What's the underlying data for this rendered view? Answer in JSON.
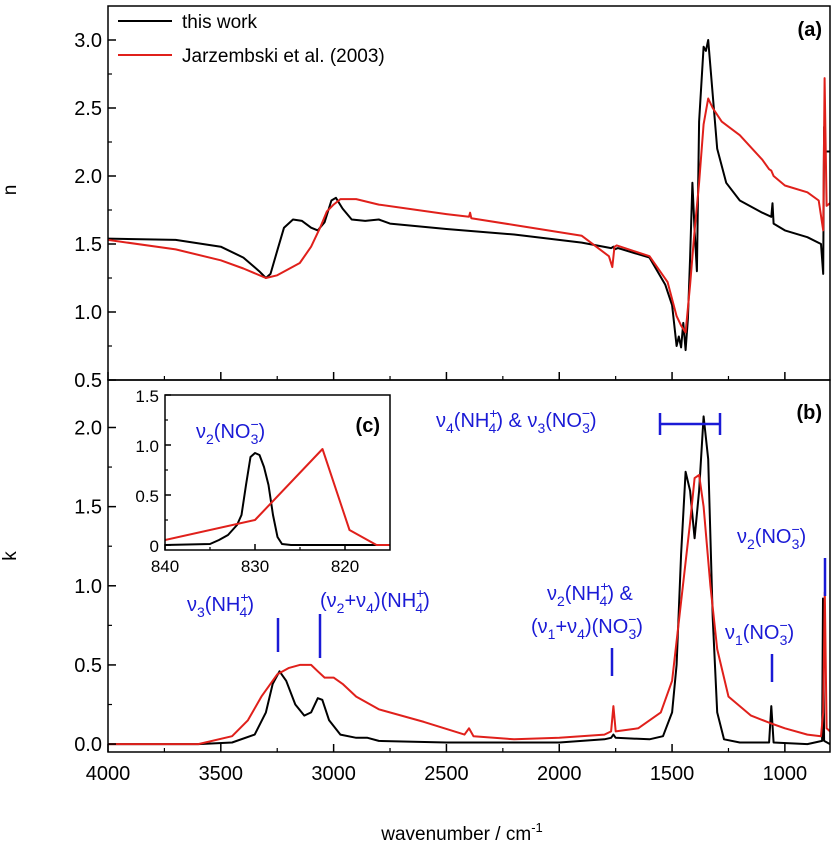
{
  "colors": {
    "this_work": "#000000",
    "jarzembski": "#e0201b",
    "annotation": "#1a1ad6"
  },
  "legend": {
    "series_a": "this work",
    "series_b": "Jarzembski et al. (2003)"
  },
  "axes": {
    "xlabel": "wavenumber / cm",
    "xlabel_sup": "-1",
    "ylabel_top": "n",
    "ylabel_bottom": "k"
  },
  "panels": {
    "a": "(a)",
    "b": "(b)",
    "c": "(c)"
  },
  "annotations": {
    "v3_nh4": {
      "pre": "ν",
      "sub1": "3",
      "mid": "(NH",
      "sup": "+",
      "sub2": "4",
      "post": ")"
    },
    "v2v4_nh4": {
      "pre": "(ν",
      "sub1": "2",
      "mid1": "+ν",
      "sub2": "4",
      "mid2": ")(NH",
      "sup": "+",
      "sub3": "4",
      "post": ")"
    },
    "v2_nh4_line1": {
      "pre": "ν",
      "sub1": "2",
      "mid": "(NH",
      "sup": "+",
      "sub2": "4",
      "post": ") &"
    },
    "v1v4_no3": {
      "pre": "(ν",
      "sub1": "1",
      "mid1": "+ν",
      "sub2": "4",
      "mid2": ")(NO",
      "sup": "−",
      "sub3": "3",
      "post": ")"
    },
    "v4v3": {
      "pre": "ν",
      "sub1": "4",
      "mid1": "(NH",
      "sup1": "+",
      "sub2": "4",
      "mid2": ") & ν",
      "sub3": "3",
      "mid3": "(NO",
      "sup2": "−",
      "sub4": "3",
      "post": ")"
    },
    "v2_no3": {
      "pre": "ν",
      "sub1": "2",
      "mid": "(NO",
      "sup": "−",
      "sub2": "3",
      "post": ")"
    },
    "v1_no3": {
      "pre": "ν",
      "sub1": "1",
      "mid": "(NO",
      "sup": "−",
      "sub2": "3",
      "post": ")"
    },
    "inset_v2_no3": {
      "pre": "ν",
      "sub1": "2",
      "mid": "(NO",
      "sup": "−",
      "sub2": "3",
      "post": ")"
    }
  },
  "chart_data": [
    {
      "panel": "(a)",
      "type": "line",
      "xlabel": "",
      "ylabel": "n",
      "xlim": [
        4000,
        800
      ],
      "ylim": [
        0.5,
        3.25
      ],
      "x_ticks": [
        4000,
        3500,
        3000,
        2500,
        2000,
        1500,
        1000
      ],
      "y_ticks": [
        0.5,
        1.0,
        1.5,
        2.0,
        2.5,
        3.0
      ],
      "y_tick_labels": [
        "0.5",
        "1.0",
        "1.5",
        "2.0",
        "2.5",
        "3.0"
      ],
      "legend_position": "top-left",
      "series": [
        {
          "name": "this work",
          "color": "#000000",
          "points": [
            [
              4000,
              1.54
            ],
            [
              3700,
              1.53
            ],
            [
              3500,
              1.48
            ],
            [
              3400,
              1.4
            ],
            [
              3330,
              1.3
            ],
            [
              3300,
              1.25
            ],
            [
              3280,
              1.28
            ],
            [
              3250,
              1.45
            ],
            [
              3220,
              1.62
            ],
            [
              3180,
              1.68
            ],
            [
              3140,
              1.67
            ],
            [
              3100,
              1.62
            ],
            [
              3070,
              1.6
            ],
            [
              3040,
              1.66
            ],
            [
              3010,
              1.82
            ],
            [
              2990,
              1.84
            ],
            [
              2960,
              1.76
            ],
            [
              2920,
              1.68
            ],
            [
              2860,
              1.67
            ],
            [
              2800,
              1.68
            ],
            [
              2750,
              1.65
            ],
            [
              2500,
              1.61
            ],
            [
              2200,
              1.57
            ],
            [
              1900,
              1.51
            ],
            [
              1770,
              1.47
            ],
            [
              1760,
              1.48
            ],
            [
              1755,
              1.46
            ],
            [
              1740,
              1.47
            ],
            [
              1600,
              1.4
            ],
            [
              1530,
              1.2
            ],
            [
              1500,
              1.05
            ],
            [
              1480,
              0.75
            ],
            [
              1470,
              0.82
            ],
            [
              1460,
              0.74
            ],
            [
              1450,
              0.92
            ],
            [
              1440,
              0.72
            ],
            [
              1430,
              0.95
            ],
            [
              1420,
              1.4
            ],
            [
              1410,
              1.95
            ],
            [
              1400,
              1.6
            ],
            [
              1390,
              1.3
            ],
            [
              1380,
              2.4
            ],
            [
              1360,
              2.95
            ],
            [
              1350,
              2.92
            ],
            [
              1340,
              3.0
            ],
            [
              1320,
              2.6
            ],
            [
              1300,
              2.2
            ],
            [
              1260,
              1.95
            ],
            [
              1200,
              1.82
            ],
            [
              1100,
              1.73
            ],
            [
              1060,
              1.7
            ],
            [
              1055,
              1.8
            ],
            [
              1050,
              1.65
            ],
            [
              1000,
              1.6
            ],
            [
              900,
              1.55
            ],
            [
              840,
              1.5
            ],
            [
              830,
              1.28
            ],
            [
              826,
              2.36
            ],
            [
              820,
              2.18
            ],
            [
              800,
              2.18
            ]
          ]
        },
        {
          "name": "Jarzembski et al. (2003)",
          "color": "#e0201b",
          "points": [
            [
              4000,
              1.53
            ],
            [
              3700,
              1.46
            ],
            [
              3500,
              1.38
            ],
            [
              3400,
              1.32
            ],
            [
              3300,
              1.25
            ],
            [
              3250,
              1.27
            ],
            [
              3150,
              1.36
            ],
            [
              3100,
              1.48
            ],
            [
              3060,
              1.62
            ],
            [
              3030,
              1.74
            ],
            [
              3000,
              1.79
            ],
            [
              2970,
              1.83
            ],
            [
              2900,
              1.83
            ],
            [
              2800,
              1.79
            ],
            [
              2500,
              1.72
            ],
            [
              2400,
              1.7
            ],
            [
              2395,
              1.73
            ],
            [
              2390,
              1.69
            ],
            [
              2200,
              1.64
            ],
            [
              1900,
              1.56
            ],
            [
              1780,
              1.41
            ],
            [
              1765,
              1.33
            ],
            [
              1755,
              1.48
            ],
            [
              1745,
              1.49
            ],
            [
              1600,
              1.41
            ],
            [
              1520,
              1.22
            ],
            [
              1480,
              0.97
            ],
            [
              1460,
              0.9
            ],
            [
              1440,
              0.85
            ],
            [
              1420,
              1.2
            ],
            [
              1400,
              1.6
            ],
            [
              1380,
              1.95
            ],
            [
              1360,
              2.38
            ],
            [
              1340,
              2.57
            ],
            [
              1320,
              2.5
            ],
            [
              1280,
              2.4
            ],
            [
              1200,
              2.3
            ],
            [
              1100,
              2.12
            ],
            [
              1070,
              2.05
            ],
            [
              1060,
              2.04
            ],
            [
              1050,
              2.0
            ],
            [
              1000,
              1.93
            ],
            [
              900,
              1.88
            ],
            [
              850,
              1.82
            ],
            [
              830,
              1.6
            ],
            [
              824,
              2.72
            ],
            [
              815,
              1.78
            ],
            [
              800,
              1.8
            ]
          ]
        }
      ]
    },
    {
      "panel": "(b)",
      "type": "line",
      "xlabel": "wavenumber / cm-1",
      "ylabel": "k",
      "xlim": [
        4000,
        800
      ],
      "ylim": [
        -0.05,
        2.3
      ],
      "x_ticks": [
        4000,
        3500,
        3000,
        2500,
        2000,
        1500,
        1000
      ],
      "x_tick_labels": [
        "4000",
        "3500",
        "3000",
        "2500",
        "2000",
        "1500",
        "1000"
      ],
      "y_ticks": [
        0.0,
        0.5,
        1.0,
        1.5,
        2.0
      ],
      "y_tick_labels": [
        "0.0",
        "0.5",
        "1.0",
        "1.5",
        "2.0"
      ],
      "series": [
        {
          "name": "this work",
          "color": "#000000",
          "points": [
            [
              4000,
              0.0
            ],
            [
              3600,
              0.0
            ],
            [
              3450,
              0.01
            ],
            [
              3350,
              0.06
            ],
            [
              3300,
              0.2
            ],
            [
              3270,
              0.38
            ],
            [
              3240,
              0.46
            ],
            [
              3210,
              0.4
            ],
            [
              3170,
              0.25
            ],
            [
              3130,
              0.18
            ],
            [
              3100,
              0.2
            ],
            [
              3070,
              0.29
            ],
            [
              3050,
              0.28
            ],
            [
              3020,
              0.15
            ],
            [
              2970,
              0.06
            ],
            [
              2900,
              0.04
            ],
            [
              2850,
              0.04
            ],
            [
              2800,
              0.02
            ],
            [
              2500,
              0.01
            ],
            [
              2000,
              0.01
            ],
            [
              1800,
              0.03
            ],
            [
              1770,
              0.04
            ],
            [
              1760,
              0.06
            ],
            [
              1750,
              0.04
            ],
            [
              1600,
              0.03
            ],
            [
              1540,
              0.05
            ],
            [
              1500,
              0.2
            ],
            [
              1480,
              0.5
            ],
            [
              1460,
              1.2
            ],
            [
              1440,
              1.72
            ],
            [
              1420,
              1.6
            ],
            [
              1400,
              1.3
            ],
            [
              1380,
              1.6
            ],
            [
              1360,
              2.07
            ],
            [
              1340,
              1.8
            ],
            [
              1320,
              0.8
            ],
            [
              1300,
              0.2
            ],
            [
              1270,
              0.03
            ],
            [
              1200,
              0.01
            ],
            [
              1070,
              0.01
            ],
            [
              1060,
              0.24
            ],
            [
              1050,
              0.01
            ],
            [
              900,
              0.0
            ],
            [
              835,
              0.02
            ],
            [
              831,
              0.92
            ],
            [
              826,
              0.02
            ],
            [
              800,
              0.0
            ]
          ]
        },
        {
          "name": "Jarzembski et al. (2003)",
          "color": "#e0201b",
          "points": [
            [
              4000,
              0.0
            ],
            [
              3600,
              0.0
            ],
            [
              3450,
              0.05
            ],
            [
              3380,
              0.15
            ],
            [
              3320,
              0.3
            ],
            [
              3250,
              0.44
            ],
            [
              3200,
              0.48
            ],
            [
              3150,
              0.5
            ],
            [
              3100,
              0.5
            ],
            [
              3070,
              0.46
            ],
            [
              3040,
              0.42
            ],
            [
              3000,
              0.42
            ],
            [
              2960,
              0.38
            ],
            [
              2900,
              0.3
            ],
            [
              2800,
              0.22
            ],
            [
              2600,
              0.14
            ],
            [
              2420,
              0.06
            ],
            [
              2400,
              0.1
            ],
            [
              2380,
              0.05
            ],
            [
              2200,
              0.03
            ],
            [
              2000,
              0.04
            ],
            [
              1800,
              0.06
            ],
            [
              1770,
              0.08
            ],
            [
              1760,
              0.24
            ],
            [
              1750,
              0.08
            ],
            [
              1650,
              0.1
            ],
            [
              1550,
              0.2
            ],
            [
              1500,
              0.4
            ],
            [
              1460,
              0.9
            ],
            [
              1420,
              1.4
            ],
            [
              1400,
              1.68
            ],
            [
              1380,
              1.7
            ],
            [
              1360,
              1.5
            ],
            [
              1330,
              1.0
            ],
            [
              1300,
              0.6
            ],
            [
              1250,
              0.3
            ],
            [
              1150,
              0.18
            ],
            [
              1060,
              0.13
            ],
            [
              1000,
              0.1
            ],
            [
              900,
              0.06
            ],
            [
              840,
              0.05
            ],
            [
              830,
              0.2
            ],
            [
              823,
              0.96
            ],
            [
              815,
              0.1
            ],
            [
              800,
              0.08
            ]
          ]
        }
      ]
    },
    {
      "panel": "(c)",
      "type": "line",
      "xlim": [
        840,
        815
      ],
      "ylim": [
        -0.05,
        1.5
      ],
      "x_ticks": [
        840,
        830,
        820
      ],
      "x_tick_labels": [
        "840",
        "830",
        "820"
      ],
      "y_ticks": [
        0.0,
        0.5,
        1.0,
        1.5
      ],
      "y_tick_labels": [
        "0",
        "0.5",
        "1.0",
        "1.5"
      ],
      "series": [
        {
          "name": "this work",
          "color": "#000000",
          "points": [
            [
              840,
              0.0
            ],
            [
              835,
              0.01
            ],
            [
              834,
              0.05
            ],
            [
              833,
              0.1
            ],
            [
              832,
              0.2
            ],
            [
              831.5,
              0.3
            ],
            [
              831,
              0.6
            ],
            [
              830.5,
              0.88
            ],
            [
              830,
              0.92
            ],
            [
              829.5,
              0.9
            ],
            [
              829,
              0.78
            ],
            [
              828.5,
              0.6
            ],
            [
              828,
              0.3
            ],
            [
              827.5,
              0.08
            ],
            [
              827,
              0.01
            ],
            [
              826,
              0.0
            ],
            [
              815,
              0.0
            ]
          ]
        },
        {
          "name": "Jarzembski et al. (2003)",
          "color": "#e0201b",
          "points": [
            [
              840,
              0.05
            ],
            [
              830,
              0.25
            ],
            [
              822.5,
              0.96
            ],
            [
              819.5,
              0.15
            ],
            [
              816.5,
              0.0
            ],
            [
              815,
              0.0
            ]
          ]
        }
      ]
    }
  ]
}
